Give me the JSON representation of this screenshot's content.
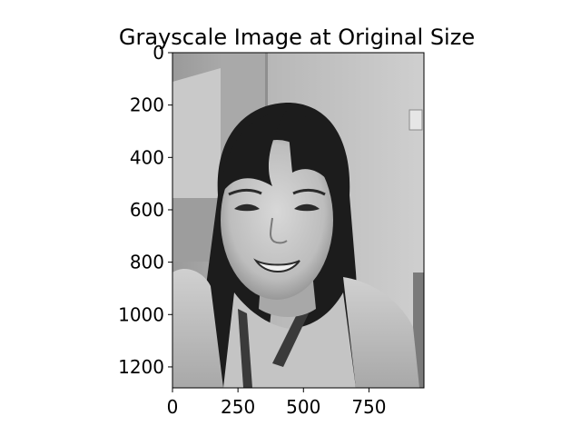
{
  "chart_data": {
    "type": "image",
    "title": "Grayscale Image at Original Size",
    "colormap": "gray",
    "xlabel": "",
    "ylabel": "",
    "image_extent": {
      "width": 960,
      "height": 1280
    },
    "xlim": [
      0,
      960
    ],
    "ylim": [
      1280,
      0
    ],
    "x_ticks": [
      0,
      250,
      500,
      750
    ],
    "y_ticks": [
      0,
      200,
      400,
      600,
      800,
      1000,
      1200
    ],
    "grid": false,
    "image_subject": "portrait-smiling-person-long-dark-hair"
  }
}
